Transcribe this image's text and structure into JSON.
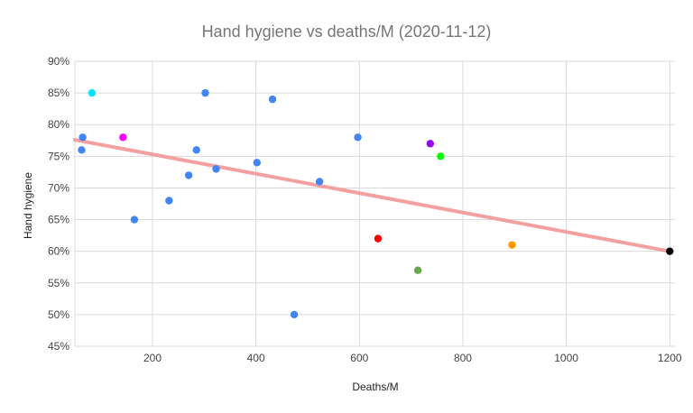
{
  "chart_data": {
    "type": "scatter",
    "title": "Hand hygiene vs deaths/M (2020-11-12)",
    "xlabel": "Deaths/M",
    "ylabel": "Hand hygiene",
    "xlim": [
      50,
      1210
    ],
    "ylim": [
      45,
      90
    ],
    "x_ticks": [
      200,
      400,
      600,
      800,
      1000,
      1200
    ],
    "x_tick_labels": [
      "200",
      "400",
      "600",
      "800",
      "1000",
      "1200"
    ],
    "y_ticks": [
      45,
      50,
      55,
      60,
      65,
      70,
      75,
      80,
      85,
      90
    ],
    "y_tick_labels": [
      "45%",
      "50%",
      "55%",
      "60%",
      "65%",
      "70%",
      "75%",
      "80%",
      "85%",
      "90%"
    ],
    "grid": true,
    "points": [
      {
        "x": 65,
        "y": 78,
        "color": "#4285f4"
      },
      {
        "x": 63,
        "y": 76,
        "color": "#4285f4"
      },
      {
        "x": 83,
        "y": 85,
        "color": "#00e5ff"
      },
      {
        "x": 143,
        "y": 78,
        "color": "#ff00ff"
      },
      {
        "x": 165,
        "y": 65,
        "color": "#4285f4"
      },
      {
        "x": 232,
        "y": 68,
        "color": "#4285f4"
      },
      {
        "x": 270,
        "y": 72,
        "color": "#4285f4"
      },
      {
        "x": 285,
        "y": 76,
        "color": "#4285f4"
      },
      {
        "x": 302,
        "y": 85,
        "color": "#4285f4"
      },
      {
        "x": 323,
        "y": 73,
        "color": "#4285f4"
      },
      {
        "x": 402,
        "y": 74,
        "color": "#4285f4"
      },
      {
        "x": 432,
        "y": 84,
        "color": "#4285f4"
      },
      {
        "x": 474,
        "y": 50,
        "color": "#4285f4"
      },
      {
        "x": 523,
        "y": 71,
        "color": "#4285f4"
      },
      {
        "x": 597,
        "y": 78,
        "color": "#4285f4"
      },
      {
        "x": 636,
        "y": 62,
        "color": "#ff0000"
      },
      {
        "x": 713,
        "y": 57,
        "color": "#6aa84f"
      },
      {
        "x": 737,
        "y": 77,
        "color": "#9900ff"
      },
      {
        "x": 757,
        "y": 75,
        "color": "#00ff00"
      },
      {
        "x": 895,
        "y": 61,
        "color": "#ff9900"
      },
      {
        "x": 1200,
        "y": 60,
        "color": "#000000"
      }
    ],
    "trendline": {
      "x": [
        50,
        1200
      ],
      "y": [
        77.6,
        60
      ],
      "color": "#f4a0a0"
    }
  }
}
